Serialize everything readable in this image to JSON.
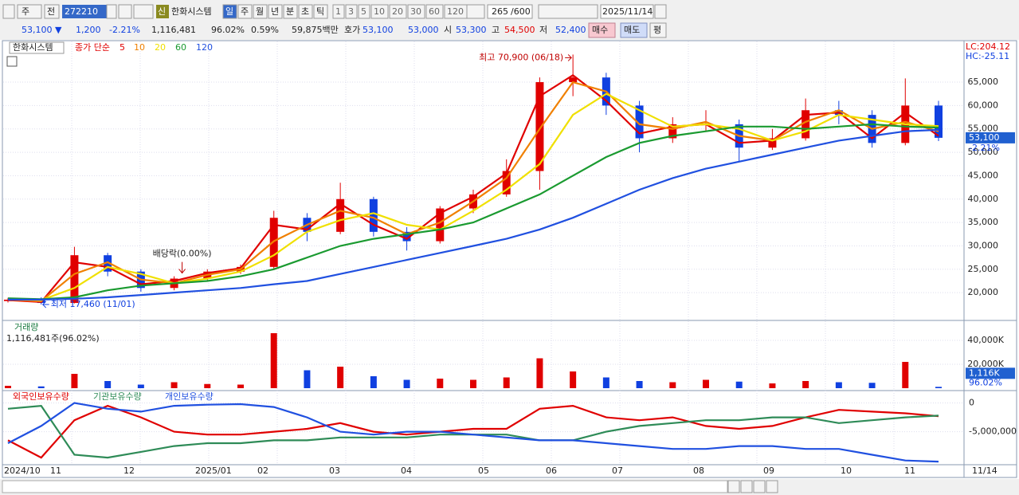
{
  "toolbar": {
    "market": "주",
    "scope": "전",
    "code": "272210",
    "new_badge": "신",
    "name": "한화시스템",
    "periods": [
      "일",
      "주",
      "월",
      "년",
      "분",
      "초",
      "틱"
    ],
    "intervals": [
      "1",
      "3",
      "5",
      "10",
      "20",
      "30",
      "60",
      "120"
    ],
    "count": "265",
    "total": "/600",
    "date": "2025/11/14"
  },
  "quote": {
    "price": "53,100 ▼",
    "change": "1,200",
    "rate": "-2.21%",
    "volume": "1,116,481",
    "volume_ratio": "96.02%",
    "turnover": "0.59%",
    "amount": "59,875백만",
    "ask_label": "호가",
    "ask": "53,100",
    "bid": "53,000",
    "open_label": "시",
    "open": "53,300",
    "high_label": "고",
    "high": "54,500",
    "low_label": "저",
    "low": "52,400",
    "buy": "매수",
    "sell": "매도",
    "eval": "평"
  },
  "chart_data": [
    {
      "type": "candlestick",
      "title": "한화시스템",
      "ma_label": "종가 단순",
      "up_color": "#e00000",
      "down_color": "#1040e0",
      "open": [
        18200,
        18500,
        17800,
        28000,
        24500,
        21000,
        23000,
        24500,
        25500,
        36000,
        33000,
        40000,
        33000,
        31000,
        38000,
        41000,
        46000,
        65000,
        66000,
        60000,
        53000,
        56000,
        56000,
        51000,
        53000,
        59000,
        58000,
        52000,
        60000
      ],
      "high": [
        18900,
        19000,
        29800,
        28500,
        25000,
        23500,
        25000,
        26000,
        37500,
        37000,
        43500,
        40500,
        34000,
        38500,
        42000,
        48500,
        66000,
        70900,
        67000,
        61000,
        57500,
        59000,
        57000,
        55000,
        61500,
        61000,
        59000,
        65800,
        61000
      ],
      "low": [
        17900,
        17460,
        17700,
        23500,
        20200,
        20500,
        22500,
        24000,
        25000,
        31000,
        32500,
        32000,
        29000,
        30500,
        37000,
        40500,
        42000,
        62000,
        58000,
        50000,
        52000,
        54500,
        48000,
        50500,
        52500,
        56000,
        51000,
        51500,
        52400
      ],
      "close": [
        18500,
        17800,
        28000,
        24500,
        21000,
        23000,
        24500,
        25500,
        36000,
        33000,
        40000,
        33000,
        31000,
        38000,
        41000,
        46000,
        65000,
        66000,
        60000,
        53000,
        56000,
        56000,
        51000,
        53000,
        59000,
        58000,
        52000,
        60000,
        53100
      ],
      "series": [
        {
          "name": "5",
          "color": "#e00000",
          "values": [
            18400,
            18000,
            26500,
            25500,
            21800,
            22500,
            24200,
            25200,
            34500,
            33500,
            39000,
            34500,
            31500,
            37000,
            40500,
            45500,
            62000,
            66500,
            61000,
            54000,
            55500,
            56000,
            52000,
            52500,
            58000,
            58500,
            53000,
            58500,
            53500
          ]
        },
        {
          "name": "10",
          "color": "#f08000",
          "values": [
            18500,
            18200,
            24000,
            26500,
            22800,
            22000,
            23800,
            25000,
            31000,
            34500,
            37500,
            36000,
            32500,
            35000,
            39500,
            44500,
            55000,
            65000,
            63000,
            56000,
            55000,
            56500,
            53500,
            52500,
            56500,
            59000,
            55000,
            56500,
            54500
          ]
        },
        {
          "name": "20",
          "color": "#f0e000",
          "values": [
            18600,
            18400,
            21000,
            25500,
            24000,
            22000,
            23000,
            24500,
            28000,
            33000,
            35500,
            37000,
            34500,
            33500,
            37500,
            42000,
            47500,
            58000,
            62500,
            59000,
            55500,
            56000,
            55000,
            52500,
            54500,
            58000,
            57000,
            56000,
            55600
          ]
        },
        {
          "name": "60",
          "color": "#1a9a30",
          "values": [
            18800,
            18600,
            19000,
            20500,
            21500,
            22000,
            22500,
            23500,
            25000,
            27500,
            30000,
            31500,
            32500,
            33500,
            35000,
            38000,
            41000,
            45000,
            49000,
            52000,
            53500,
            54500,
            55500,
            55500,
            55000,
            55500,
            56000,
            55500,
            55300
          ]
        },
        {
          "name": "120",
          "color": "#2050e0",
          "values": [
            18500,
            18500,
            18700,
            19000,
            19500,
            20000,
            20500,
            21000,
            21800,
            22500,
            24000,
            25500,
            27000,
            28500,
            30000,
            31500,
            33500,
            36000,
            39000,
            42000,
            44500,
            46500,
            48000,
            49500,
            51000,
            52500,
            53500,
            54500,
            54800
          ]
        }
      ],
      "ylim": [
        14400,
        73700
      ],
      "yticks": [
        {
          "value": 20000,
          "label": "20,000"
        },
        {
          "value": 25000,
          "label": "25,000"
        },
        {
          "value": 30000,
          "label": "30,000"
        },
        {
          "value": 35000,
          "label": "35,000"
        },
        {
          "value": 40000,
          "label": "40,000"
        },
        {
          "value": 45000,
          "label": "45,000"
        },
        {
          "value": 50000,
          "label": "50,000"
        },
        {
          "value": 55000,
          "label": "55,000"
        },
        {
          "value": 60000,
          "label": "60,000"
        },
        {
          "value": 65000,
          "label": "65,000"
        }
      ],
      "annotations": {
        "high": "최고 70,900 (06/18)",
        "low": "최저 17,460 (11/01)",
        "dividend": "배당락(0.00%)"
      },
      "lc": "LC:204.12",
      "hc": "HC:-25.11",
      "last_label": "53,100",
      "last_rate": "-2.21%"
    },
    {
      "type": "bar",
      "title": "거래량",
      "subtitle": "1,116,481주(96.02%)",
      "values": [
        2000,
        1500,
        12000,
        6000,
        3000,
        5000,
        3500,
        3000,
        46000,
        15000,
        18000,
        10000,
        7000,
        8000,
        7000,
        9000,
        25000,
        14000,
        9000,
        6000,
        5000,
        7000,
        5500,
        4000,
        6000,
        5000,
        4500,
        22000,
        1116
      ],
      "ylim": [
        0,
        56000
      ],
      "yticks": [
        {
          "value": 20000,
          "label": "20,000K"
        },
        {
          "value": 40000,
          "label": "40,000K"
        }
      ],
      "last_label": "1,116K",
      "last_rate": "96.02%"
    },
    {
      "type": "line",
      "series": [
        {
          "name": "외국인보유수량",
          "color": "#e00000",
          "values": [
            -6500000,
            -9500000,
            -3000000,
            -500000,
            -2500000,
            -5000000,
            -5500000,
            -5500000,
            -5000000,
            -4500000,
            -3500000,
            -5000000,
            -5500000,
            -5000000,
            -4500000,
            -4500000,
            -1000000,
            -500000,
            -2500000,
            -3000000,
            -2500000,
            -4000000,
            -4500000,
            -4000000,
            -2500000,
            -1200000,
            -1500000,
            -1800000,
            -2300000
          ]
        },
        {
          "name": "기관보유수량",
          "color": "#2e8b57",
          "values": [
            -1000000,
            -500000,
            -9000000,
            -9500000,
            -8500000,
            -7500000,
            -7000000,
            -7000000,
            -6500000,
            -6500000,
            -6000000,
            -6000000,
            -6000000,
            -5500000,
            -5500000,
            -5500000,
            -6500000,
            -6500000,
            -5000000,
            -4000000,
            -3500000,
            -3000000,
            -3000000,
            -2500000,
            -2500000,
            -3500000,
            -3000000,
            -2500000,
            -2200000
          ]
        },
        {
          "name": "개인보유수량",
          "color": "#2050e0",
          "values": [
            -7000000,
            -4000000,
            0,
            -1000000,
            -1500000,
            -500000,
            -300000,
            -200000,
            -700000,
            -2500000,
            -5000000,
            -5500000,
            -5000000,
            -5000000,
            -5500000,
            -6000000,
            -6500000,
            -6500000,
            -7000000,
            -7500000,
            -8000000,
            -8000000,
            -7500000,
            -7500000,
            -8000000,
            -8000000,
            -9000000,
            -10000000,
            -10200000
          ]
        }
      ],
      "ylim": [
        -10600000,
        1600000
      ],
      "yticks": [
        0,
        {
          "value": -5000000,
          "label": "-5,000,000"
        }
      ]
    }
  ],
  "x_axis": {
    "labels": [
      "2024/10",
      "11",
      "12",
      "2025/01",
      "02",
      "03",
      "04",
      "05",
      "06",
      "07",
      "08",
      "09",
      "10",
      "11"
    ],
    "end_label": "11/14"
  }
}
